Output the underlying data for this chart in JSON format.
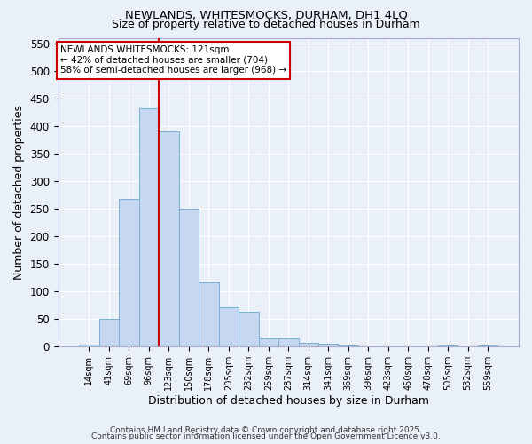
{
  "title1": "NEWLANDS, WHITESMOCKS, DURHAM, DH1 4LQ",
  "title2": "Size of property relative to detached houses in Durham",
  "xlabel": "Distribution of detached houses by size in Durham",
  "ylabel": "Number of detached properties",
  "categories": [
    "14sqm",
    "41sqm",
    "69sqm",
    "96sqm",
    "123sqm",
    "150sqm",
    "178sqm",
    "205sqm",
    "232sqm",
    "259sqm",
    "287sqm",
    "314sqm",
    "341sqm",
    "369sqm",
    "396sqm",
    "423sqm",
    "450sqm",
    "478sqm",
    "505sqm",
    "532sqm",
    "559sqm"
  ],
  "values": [
    3,
    50,
    268,
    432,
    390,
    250,
    116,
    70,
    62,
    14,
    14,
    6,
    5,
    1,
    0,
    0,
    0,
    0,
    1,
    0,
    2
  ],
  "bar_color": "#c5d8f0",
  "bar_edge_color": "#7aafd4",
  "vline_x": 3.5,
  "vline_color": "#cc0000",
  "annotation_text": "NEWLANDS WHITESMOCKS: 121sqm\n← 42% of detached houses are smaller (704)\n58% of semi-detached houses are larger (968) →",
  "annotation_box_color": "#ffffff",
  "annotation_box_edge": "#cc0000",
  "ylim": [
    0,
    560
  ],
  "yticks": [
    0,
    50,
    100,
    150,
    200,
    250,
    300,
    350,
    400,
    450,
    500,
    550
  ],
  "bg_color": "#eaf0f8",
  "grid_color": "#ffffff",
  "footer1": "Contains HM Land Registry data © Crown copyright and database right 2025.",
  "footer2": "Contains public sector information licensed under the Open Government Licence v3.0."
}
